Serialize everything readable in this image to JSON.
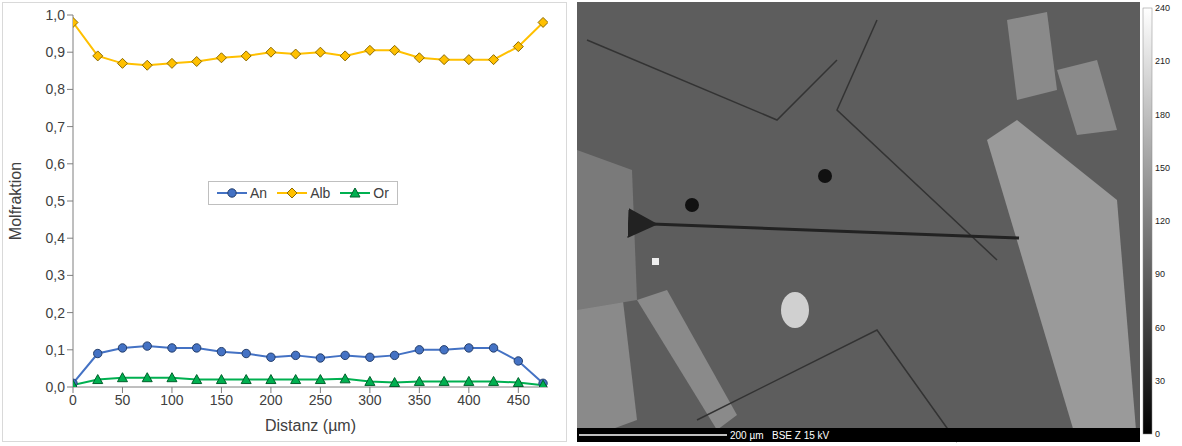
{
  "chart_data": {
    "type": "line",
    "xlabel": "Distanz (µm)",
    "ylabel": "Molfraktion",
    "x": [
      0,
      25,
      50,
      75,
      100,
      125,
      150,
      175,
      200,
      225,
      250,
      275,
      300,
      325,
      350,
      375,
      400,
      425,
      450,
      475
    ],
    "xlim": [
      0,
      480
    ],
    "xticks": [
      0,
      50,
      100,
      150,
      200,
      250,
      300,
      350,
      400,
      450
    ],
    "ylim": [
      0,
      1
    ],
    "yticks": [
      {
        "value": 0,
        "label": "0,0"
      },
      {
        "value": 0.1,
        "label": "0,1"
      },
      {
        "value": 0.2,
        "label": "0,2"
      },
      {
        "value": 0.3,
        "label": "0,3"
      },
      {
        "value": 0.4,
        "label": "0,4"
      },
      {
        "value": 0.5,
        "label": "0,5"
      },
      {
        "value": 0.6,
        "label": "0,6"
      },
      {
        "value": 0.7,
        "label": "0,7"
      },
      {
        "value": 0.8,
        "label": "0,8"
      },
      {
        "value": 0.9,
        "label": "0,9"
      },
      {
        "value": 1,
        "label": "1,0"
      }
    ],
    "grid": false,
    "legend": "center",
    "series": [
      {
        "name": "An",
        "color": "#4472c4",
        "marker": "circle",
        "values": [
          0.01,
          0.09,
          0.105,
          0.11,
          0.105,
          0.105,
          0.095,
          0.09,
          0.08,
          0.085,
          0.078,
          0.085,
          0.08,
          0.085,
          0.1,
          0.1,
          0.105,
          0.105,
          0.07,
          0.01
        ]
      },
      {
        "name": "Alb",
        "color": "#ffc000",
        "marker": "diamond",
        "values": [
          0.98,
          0.89,
          0.87,
          0.865,
          0.87,
          0.875,
          0.885,
          0.89,
          0.9,
          0.895,
          0.9,
          0.89,
          0.905,
          0.905,
          0.885,
          0.88,
          0.88,
          0.88,
          0.915,
          0.98
        ]
      },
      {
        "name": "Or",
        "color": "#00b050",
        "marker": "triangle",
        "values": [
          0.005,
          0.02,
          0.025,
          0.025,
          0.025,
          0.02,
          0.02,
          0.02,
          0.02,
          0.02,
          0.02,
          0.022,
          0.015,
          0.012,
          0.015,
          0.015,
          0.015,
          0.015,
          0.012,
          0.005
        ]
      }
    ]
  },
  "image": {
    "scale_bar": "200 µm",
    "info": "BSE Z 15 kV",
    "colorbar": {
      "range": [
        0,
        240
      ],
      "ticks": [
        0,
        30,
        60,
        90,
        120,
        150,
        180,
        210,
        240
      ]
    }
  }
}
